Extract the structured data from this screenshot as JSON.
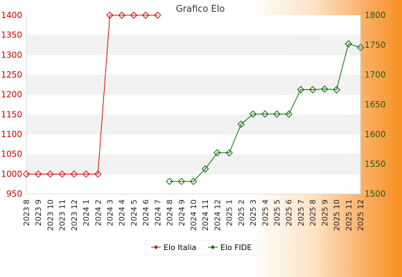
{
  "chart_data": {
    "type": "line",
    "title": "Grafico Elo",
    "categories": [
      "2023 8",
      "2023 9",
      "2023 10",
      "2023 11",
      "2023 12",
      "2024 1",
      "2024 2",
      "2024 3",
      "2024 4",
      "2024 5",
      "2024 6",
      "2024 7",
      "2024 8",
      "2024 9",
      "2024 10",
      "2024 11",
      "2024 12",
      "2025 1",
      "2025 2",
      "2025 3",
      "2025 4",
      "2025 5",
      "2025 6",
      "2025 7",
      "2025 8",
      "2025 9",
      "2025 10",
      "2025 11",
      "2025 12"
    ],
    "y_left": {
      "min": 950,
      "max": 1400,
      "ticks": [
        950,
        1000,
        1050,
        1100,
        1150,
        1200,
        1250,
        1300,
        1350,
        1400
      ],
      "color": "#c40000"
    },
    "y_right": {
      "min": 1500,
      "max": 1800,
      "ticks": [
        1500,
        1550,
        1600,
        1650,
        1700,
        1750,
        1800
      ],
      "color": "#1a5f1a"
    },
    "grid": "horizontal bands",
    "legend_position": "bottom",
    "series": [
      {
        "name": "Elo Italia",
        "axis": "left",
        "color": "#d40000",
        "values": [
          1000,
          1000,
          1000,
          1000,
          1000,
          1000,
          1000,
          1400,
          1400,
          1400,
          1400,
          1400,
          null,
          null,
          null,
          null,
          null,
          null,
          null,
          null,
          null,
          null,
          null,
          null,
          null,
          null,
          null,
          null,
          null
        ]
      },
      {
        "name": "Elo FIDE",
        "axis": "right",
        "color": "#006400",
        "values": [
          null,
          null,
          null,
          null,
          null,
          null,
          null,
          null,
          null,
          null,
          null,
          null,
          1521,
          1521,
          1521,
          1542,
          1569,
          1569,
          1617,
          1634,
          1634,
          1634,
          1634,
          1675,
          1675,
          1676,
          1675,
          1752,
          1746
        ]
      }
    ]
  }
}
